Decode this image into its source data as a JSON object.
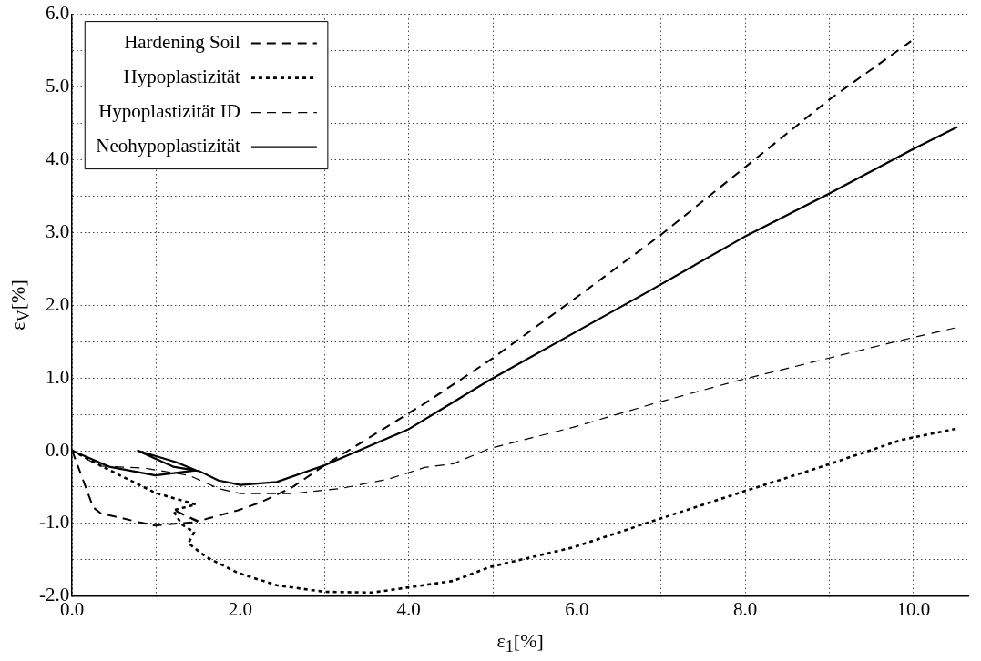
{
  "chart_data": {
    "type": "line",
    "xlabel": "ε$_{1}$[%]",
    "ylabel": "ε$_{V}$[%]",
    "xlim": [
      0,
      10.65
    ],
    "ylim": [
      -2,
      6
    ],
    "xticks": [
      {
        "value": 0,
        "label": "0.0"
      },
      {
        "value": 1,
        "label": null
      },
      {
        "value": 2,
        "label": "2.0"
      },
      {
        "value": 3,
        "label": null
      },
      {
        "value": 4,
        "label": "4.0"
      },
      {
        "value": 5,
        "label": null
      },
      {
        "value": 6,
        "label": "6.0"
      },
      {
        "value": 7,
        "label": null
      },
      {
        "value": 8,
        "label": "8.0"
      },
      {
        "value": 9,
        "label": null
      },
      {
        "value": 10,
        "label": "10.0"
      }
    ],
    "yticks": [
      {
        "value": -2,
        "label": "-2.0"
      },
      {
        "value": -1.5,
        "label": null
      },
      {
        "value": -1,
        "label": "-1.0"
      },
      {
        "value": -0.5,
        "label": null
      },
      {
        "value": 0,
        "label": "0.0"
      },
      {
        "value": 0.5,
        "label": null
      },
      {
        "value": 1,
        "label": "1.0"
      },
      {
        "value": 1.5,
        "label": null
      },
      {
        "value": 2,
        "label": "2.0"
      },
      {
        "value": 2.5,
        "label": null
      },
      {
        "value": 3,
        "label": "3.0"
      },
      {
        "value": 3.5,
        "label": null
      },
      {
        "value": 4,
        "label": "4.0"
      },
      {
        "value": 4.5,
        "label": null
      },
      {
        "value": 5,
        "label": "5.0"
      },
      {
        "value": 5.5,
        "label": null
      },
      {
        "value": 6,
        "label": "6.0"
      }
    ],
    "grid": true,
    "legend": "top left",
    "marker": "none",
    "series": [
      {
        "name": "Hardening Soil",
        "color": "#000000",
        "line_style": "dashed",
        "x": [
          0,
          0.25,
          0.34,
          0.82,
          0.99,
          1.15,
          1.5,
          1.2,
          1.5,
          1.62,
          1.97,
          2.24,
          2.62,
          3.0,
          4.19,
          4.96,
          5.95,
          6.99,
          7.99,
          8.99,
          9.97
        ],
        "values": [
          0,
          -0.78,
          -0.86,
          -0.99,
          -1.03,
          -1.01,
          -0.98,
          -0.81,
          -0.97,
          -0.93,
          -0.82,
          -0.71,
          -0.5,
          -0.2,
          0.65,
          1.24,
          2.07,
          2.96,
          3.89,
          4.82,
          5.63
        ]
      },
      {
        "name": "Hypoplastizität",
        "color": "#000000",
        "line_style": "dotted",
        "x": [
          0,
          0.5,
          0.99,
          1.47,
          1.2,
          1.3,
          1.45,
          1.38,
          1.59,
          1.97,
          2.43,
          3.0,
          3.57,
          4.53,
          4.96,
          5.95,
          6.92,
          7.9,
          8.88,
          9.86,
          10.5
        ],
        "values": [
          0,
          -0.3,
          -0.58,
          -0.74,
          -0.82,
          -1.01,
          -1.12,
          -1.27,
          -1.46,
          -1.68,
          -1.85,
          -1.94,
          -1.95,
          -1.79,
          -1.6,
          -1.33,
          -0.96,
          -0.59,
          -0.23,
          0.15,
          0.3
        ]
      },
      {
        "name": "Hypoplastizität ID",
        "color": "#000000",
        "line_style": "dashed",
        "x": [
          0,
          0.32,
          0.86,
          1.39,
          1.74,
          2.0,
          2.62,
          3.19,
          3.76,
          4.19,
          4.53,
          4.96,
          5.95,
          6.92,
          7.9,
          8.88,
          9.86,
          10.5
        ],
        "values": [
          0,
          -0.21,
          -0.24,
          -0.34,
          -0.52,
          -0.59,
          -0.59,
          -0.52,
          -0.39,
          -0.23,
          -0.18,
          0.03,
          0.32,
          0.65,
          0.96,
          1.24,
          1.52,
          1.69
        ]
      },
      {
        "name": "Neohypoplastizität",
        "color": "#000000",
        "line_style": "solid",
        "x": [
          0,
          0.44,
          0.99,
          1.47,
          1.24,
          0.78,
          1.2,
          1.51,
          1.74,
          2.0,
          2.43,
          3.0,
          3.99,
          4.96,
          5.95,
          6.82,
          7.99,
          8.99,
          10.0,
          10.52
        ],
        "values": [
          0,
          -0.22,
          -0.34,
          -0.27,
          -0.16,
          0,
          -0.22,
          -0.28,
          -0.41,
          -0.47,
          -0.43,
          -0.2,
          0.29,
          0.97,
          1.61,
          2.17,
          2.94,
          3.53,
          4.15,
          4.45
        ]
      }
    ]
  }
}
